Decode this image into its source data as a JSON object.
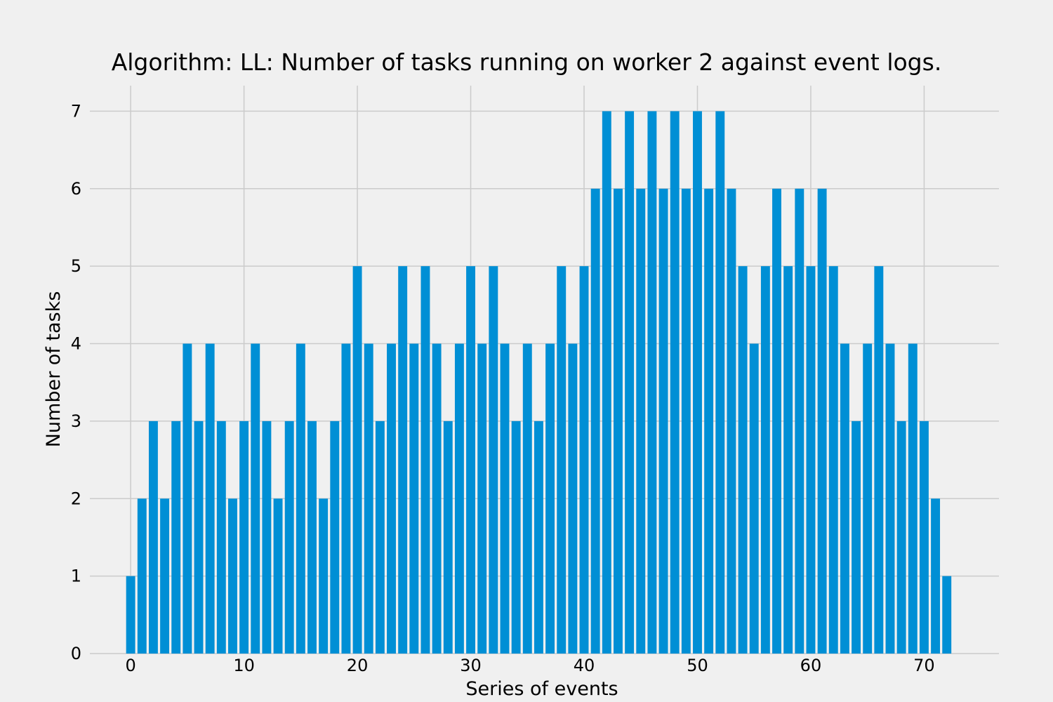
{
  "chart_data": {
    "type": "bar",
    "title": "Algorithm: LL: Number of tasks running on worker 2 against event logs.",
    "xlabel": "Series of events",
    "ylabel": "Number of tasks",
    "x": [
      0,
      1,
      2,
      3,
      4,
      5,
      6,
      7,
      8,
      9,
      10,
      11,
      12,
      13,
      14,
      15,
      16,
      17,
      18,
      19,
      20,
      21,
      22,
      23,
      24,
      25,
      26,
      27,
      28,
      29,
      30,
      31,
      32,
      33,
      34,
      35,
      36,
      37,
      38,
      39,
      40,
      41,
      42,
      43,
      44,
      45,
      46,
      47,
      48,
      49,
      50,
      51,
      52,
      53,
      54,
      55,
      56,
      57,
      58,
      59,
      60,
      61,
      62,
      63,
      64,
      65,
      66,
      67,
      68,
      69,
      70,
      71,
      72
    ],
    "values": [
      1,
      2,
      3,
      2,
      3,
      4,
      3,
      4,
      3,
      2,
      3,
      4,
      3,
      2,
      3,
      4,
      3,
      2,
      3,
      4,
      5,
      4,
      3,
      4,
      5,
      4,
      5,
      4,
      3,
      4,
      5,
      4,
      5,
      4,
      3,
      4,
      3,
      4,
      5,
      4,
      5,
      6,
      7,
      6,
      7,
      6,
      7,
      6,
      7,
      6,
      7,
      6,
      7,
      6,
      5,
      4,
      5,
      6,
      5,
      6,
      5,
      6,
      5,
      4,
      3,
      4,
      5,
      4,
      3,
      4,
      3,
      2,
      1
    ],
    "xlim": [
      -3.6,
      76.6
    ],
    "ylim": [
      0,
      7.33
    ],
    "xticks": [
      0,
      10,
      20,
      30,
      40,
      50,
      60,
      70
    ],
    "yticks": [
      0,
      1,
      2,
      3,
      4,
      5,
      6,
      7
    ],
    "grid": true,
    "bar_color": "#008fd5",
    "background": "#f0f0f0",
    "grid_color": "#cbcbcb"
  }
}
